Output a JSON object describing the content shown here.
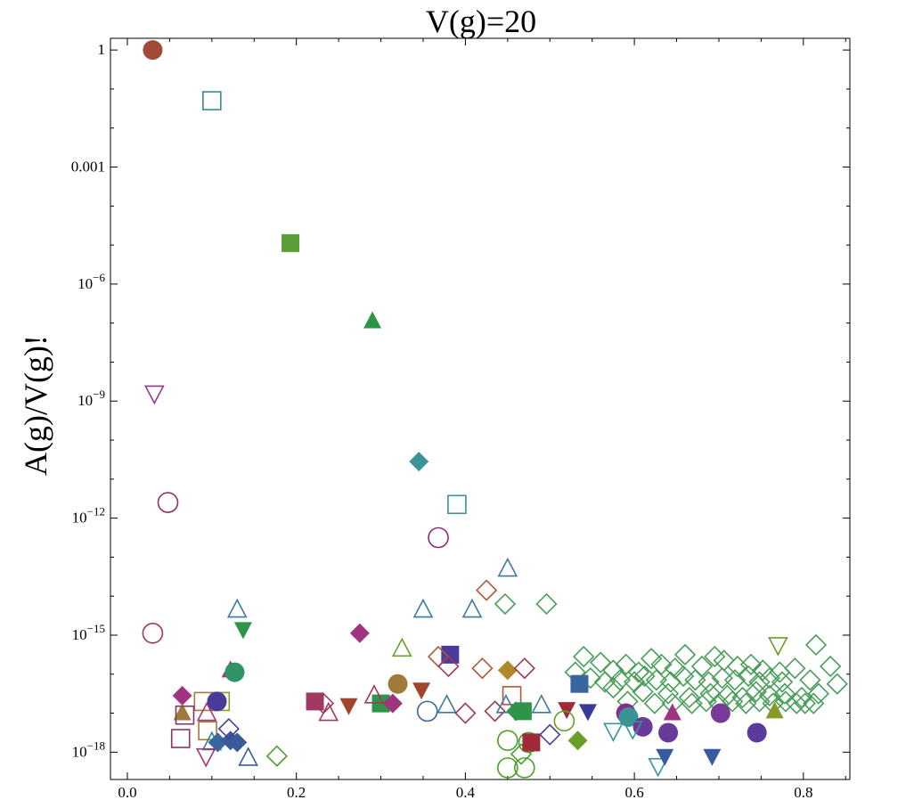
{
  "chart_data": {
    "type": "scatter",
    "title": "V(g)=20",
    "xlabel": "",
    "ylabel": "A(g)/V(g)!",
    "xlim": [
      -0.02,
      0.855
    ],
    "ylim_log10": [
      -18.7,
      0.3
    ],
    "x_ticks": [
      {
        "value": 0.0,
        "label": "0.0"
      },
      {
        "value": 0.2,
        "label": "0.2"
      },
      {
        "value": 0.4,
        "label": "0.4"
      },
      {
        "value": 0.6,
        "label": "0.6"
      },
      {
        "value": 0.8,
        "label": "0.8"
      }
    ],
    "y_ticks": [
      {
        "log10": 0,
        "base": "1",
        "exp": ""
      },
      {
        "log10": -3,
        "base": "0.001",
        "exp": ""
      },
      {
        "log10": -6,
        "base": "10",
        "exp": "−6"
      },
      {
        "log10": -9,
        "base": "10",
        "exp": "−9"
      },
      {
        "log10": -12,
        "base": "10",
        "exp": "−12"
      },
      {
        "log10": -15,
        "base": "10",
        "exp": "−15"
      },
      {
        "log10": -18,
        "base": "10",
        "exp": "−18"
      }
    ],
    "points": [
      {
        "x": 0.03,
        "log10y": 0.0,
        "shape": "circle",
        "filled": true,
        "color": "#a24a3a"
      },
      {
        "x": 0.1,
        "log10y": -1.3,
        "shape": "square",
        "filled": false,
        "color": "#3a8a96"
      },
      {
        "x": 0.193,
        "log10y": -4.95,
        "shape": "square",
        "filled": true,
        "color": "#5c9e38"
      },
      {
        "x": 0.29,
        "log10y": -6.95,
        "shape": "triangle-up",
        "filled": true,
        "color": "#2e9448"
      },
      {
        "x": 0.032,
        "log10y": -8.8,
        "shape": "triangle-down",
        "filled": false,
        "color": "#8e3a8c"
      },
      {
        "x": 0.345,
        "log10y": -10.55,
        "shape": "diamond",
        "filled": true,
        "color": "#3a9496"
      },
      {
        "x": 0.048,
        "log10y": -11.6,
        "shape": "circle",
        "filled": false,
        "color": "#8a3468"
      },
      {
        "x": 0.39,
        "log10y": -11.65,
        "shape": "square",
        "filled": false,
        "color": "#3a9496"
      },
      {
        "x": 0.368,
        "log10y": -12.5,
        "shape": "circle",
        "filled": false,
        "color": "#8e2a7a"
      },
      {
        "x": 0.45,
        "log10y": -13.3,
        "shape": "triangle-up",
        "filled": false,
        "color": "#3a7aa0"
      },
      {
        "x": 0.425,
        "log10y": -13.85,
        "shape": "diamond",
        "filled": false,
        "color": "#b0583a"
      },
      {
        "x": 0.447,
        "log10y": -14.2,
        "shape": "diamond",
        "filled": false,
        "color": "#4a9e5a"
      },
      {
        "x": 0.496,
        "log10y": -14.2,
        "shape": "diamond",
        "filled": false,
        "color": "#4a9e5a"
      },
      {
        "x": 0.13,
        "log10y": -14.35,
        "shape": "triangle-up",
        "filled": false,
        "color": "#3a7aa0"
      },
      {
        "x": 0.35,
        "log10y": -14.35,
        "shape": "triangle-up",
        "filled": false,
        "color": "#3a7aa0"
      },
      {
        "x": 0.408,
        "log10y": -14.35,
        "shape": "triangle-up",
        "filled": false,
        "color": "#3a7aa0"
      },
      {
        "x": 0.137,
        "log10y": -14.85,
        "shape": "triangle-down",
        "filled": true,
        "color": "#2e9448"
      },
      {
        "x": 0.03,
        "log10y": -14.95,
        "shape": "circle",
        "filled": false,
        "color": "#a03a54"
      },
      {
        "x": 0.275,
        "log10y": -14.95,
        "shape": "diamond",
        "filled": true,
        "color": "#a0347e"
      },
      {
        "x": 0.325,
        "log10y": -15.35,
        "shape": "triangle-up",
        "filled": false,
        "color": "#6a9e2a"
      },
      {
        "x": 0.382,
        "log10y": -15.5,
        "shape": "square",
        "filled": true,
        "color": "#4a3a9a"
      },
      {
        "x": 0.368,
        "log10y": -15.55,
        "shape": "diamond",
        "filled": false,
        "color": "#b0583a"
      },
      {
        "x": 0.38,
        "log10y": -15.8,
        "shape": "diamond",
        "filled": false,
        "color": "#a03a54"
      },
      {
        "x": 0.42,
        "log10y": -15.85,
        "shape": "diamond",
        "filled": false,
        "color": "#b0583a"
      },
      {
        "x": 0.45,
        "log10y": -15.9,
        "shape": "diamond",
        "filled": true,
        "color": "#b08a2a"
      },
      {
        "x": 0.47,
        "log10y": -15.85,
        "shape": "diamond",
        "filled": false,
        "color": "#a03a54"
      },
      {
        "x": 0.122,
        "log10y": -15.9,
        "shape": "triangle-up",
        "filled": true,
        "color": "#a0347e"
      },
      {
        "x": 0.127,
        "log10y": -15.95,
        "shape": "circle",
        "filled": true,
        "color": "#2e9468"
      },
      {
        "x": 0.77,
        "log10y": -15.25,
        "shape": "triangle-down",
        "filled": false,
        "color": "#6a9e2a"
      },
      {
        "x": 0.815,
        "log10y": -15.25,
        "shape": "diamond",
        "filled": false,
        "color": "#4a9e5a"
      },
      {
        "x": 0.32,
        "log10y": -16.25,
        "shape": "circle",
        "filled": true,
        "color": "#a07a3a"
      },
      {
        "x": 0.348,
        "log10y": -16.4,
        "shape": "triangle-down",
        "filled": true,
        "color": "#a0462a"
      },
      {
        "x": 0.535,
        "log10y": -16.25,
        "shape": "square",
        "filled": true,
        "color": "#3a66a0"
      },
      {
        "x": 0.455,
        "log10y": -16.55,
        "shape": "square",
        "filled": false,
        "color": "#b0583a"
      },
      {
        "x": 0.065,
        "log10y": -16.55,
        "shape": "diamond",
        "filled": true,
        "color": "#a0347e"
      },
      {
        "x": 0.09,
        "log10y": -16.7,
        "shape": "square",
        "filled": false,
        "color": "#a07a3a"
      },
      {
        "x": 0.11,
        "log10y": -16.7,
        "shape": "square",
        "filled": false,
        "color": "#8a9a2a"
      },
      {
        "x": 0.106,
        "log10y": -16.7,
        "shape": "circle",
        "filled": true,
        "color": "#4a3a9a"
      },
      {
        "x": 0.222,
        "log10y": -16.7,
        "shape": "square",
        "filled": true,
        "color": "#a03a64"
      },
      {
        "x": 0.232,
        "log10y": -16.75,
        "shape": "diamond",
        "filled": false,
        "color": "#a03a54"
      },
      {
        "x": 0.262,
        "log10y": -16.8,
        "shape": "triangle-down",
        "filled": true,
        "color": "#a0462a"
      },
      {
        "x": 0.3,
        "log10y": -16.75,
        "shape": "square",
        "filled": true,
        "color": "#2e9448"
      },
      {
        "x": 0.314,
        "log10y": -16.75,
        "shape": "diamond",
        "filled": true,
        "color": "#a0347e"
      },
      {
        "x": 0.292,
        "log10y": -16.55,
        "shape": "triangle-up",
        "filled": false,
        "color": "#a03a54"
      },
      {
        "x": 0.238,
        "log10y": -17.0,
        "shape": "triangle-up",
        "filled": false,
        "color": "#a03a54"
      },
      {
        "x": 0.355,
        "log10y": -16.95,
        "shape": "circle",
        "filled": false,
        "color": "#3a66a0"
      },
      {
        "x": 0.378,
        "log10y": -16.8,
        "shape": "triangle-up",
        "filled": false,
        "color": "#3a7aa0"
      },
      {
        "x": 0.4,
        "log10y": -17.0,
        "shape": "diamond",
        "filled": false,
        "color": "#a03a54"
      },
      {
        "x": 0.065,
        "log10y": -17.0,
        "shape": "triangle-up",
        "filled": true,
        "color": "#a07a3a"
      },
      {
        "x": 0.068,
        "log10y": -17.05,
        "shape": "square",
        "filled": false,
        "color": "#8a3468"
      },
      {
        "x": 0.094,
        "log10y": -17.0,
        "shape": "triangle-up",
        "filled": false,
        "color": "#a0347e"
      },
      {
        "x": 0.435,
        "log10y": -16.95,
        "shape": "diamond",
        "filled": false,
        "color": "#a03a54"
      },
      {
        "x": 0.448,
        "log10y": -16.8,
        "shape": "triangle-up",
        "filled": false,
        "color": "#3a7aa0"
      },
      {
        "x": 0.46,
        "log10y": -16.95,
        "shape": "diamond",
        "filled": true,
        "color": "#2e9448"
      },
      {
        "x": 0.468,
        "log10y": -16.95,
        "shape": "square",
        "filled": true,
        "color": "#2e9448"
      },
      {
        "x": 0.49,
        "log10y": -16.8,
        "shape": "triangle-up",
        "filled": false,
        "color": "#3a7aa0"
      },
      {
        "x": 0.52,
        "log10y": -16.9,
        "shape": "triangle-down",
        "filled": true,
        "color": "#a02a3a"
      },
      {
        "x": 0.545,
        "log10y": -16.95,
        "shape": "triangle-down",
        "filled": true,
        "color": "#3a3a9a"
      },
      {
        "x": 0.517,
        "log10y": -17.2,
        "shape": "circle",
        "filled": false,
        "color": "#6a9e2a"
      },
      {
        "x": 0.59,
        "log10y": -17.0,
        "shape": "circle",
        "filled": true,
        "color": "#8a2a8a"
      },
      {
        "x": 0.593,
        "log10y": -17.1,
        "shape": "circle",
        "filled": true,
        "color": "#3a9496"
      },
      {
        "x": 0.61,
        "log10y": -17.35,
        "shape": "circle",
        "filled": true,
        "color": "#6a3a9a"
      },
      {
        "x": 0.64,
        "log10y": -17.5,
        "shape": "circle",
        "filled": true,
        "color": "#6a3a9a"
      },
      {
        "x": 0.645,
        "log10y": -17.0,
        "shape": "triangle-up",
        "filled": true,
        "color": "#a0347e"
      },
      {
        "x": 0.702,
        "log10y": -17.0,
        "shape": "circle",
        "filled": true,
        "color": "#7a3a9a"
      },
      {
        "x": 0.745,
        "log10y": -17.5,
        "shape": "circle",
        "filled": true,
        "color": "#5a3a9a"
      },
      {
        "x": 0.766,
        "log10y": -16.95,
        "shape": "triangle-up",
        "filled": true,
        "color": "#8a9a2a"
      },
      {
        "x": 0.095,
        "log10y": -17.45,
        "shape": "square",
        "filled": false,
        "color": "#a07a3a"
      },
      {
        "x": 0.063,
        "log10y": -17.65,
        "shape": "square",
        "filled": false,
        "color": "#8a3468"
      },
      {
        "x": 0.1,
        "log10y": -17.75,
        "shape": "triangle-up",
        "filled": false,
        "color": "#3a7aa0"
      },
      {
        "x": 0.107,
        "log10y": -17.75,
        "shape": "diamond",
        "filled": true,
        "color": "#3a66a0"
      },
      {
        "x": 0.122,
        "log10y": -17.7,
        "shape": "diamond",
        "filled": true,
        "color": "#3a5a9a"
      },
      {
        "x": 0.13,
        "log10y": -17.75,
        "shape": "diamond",
        "filled": true,
        "color": "#3a5a9a"
      },
      {
        "x": 0.12,
        "log10y": -17.4,
        "shape": "diamond",
        "filled": false,
        "color": "#4a3a9a"
      },
      {
        "x": 0.093,
        "log10y": -18.1,
        "shape": "triangle-down",
        "filled": false,
        "color": "#a0347e"
      },
      {
        "x": 0.143,
        "log10y": -18.15,
        "shape": "triangle-up",
        "filled": false,
        "color": "#3a5a9a"
      },
      {
        "x": 0.177,
        "log10y": -18.1,
        "shape": "diamond",
        "filled": false,
        "color": "#4a9e2a"
      },
      {
        "x": 0.45,
        "log10y": -17.7,
        "shape": "circle",
        "filled": false,
        "color": "#4a9e2a"
      },
      {
        "x": 0.45,
        "log10y": -18.4,
        "shape": "circle",
        "filled": false,
        "color": "#4a9e2a"
      },
      {
        "x": 0.47,
        "log10y": -18.4,
        "shape": "circle",
        "filled": false,
        "color": "#4a9e2a"
      },
      {
        "x": 0.475,
        "log10y": -17.75,
        "shape": "circle",
        "filled": false,
        "color": "#4a9e2a"
      },
      {
        "x": 0.466,
        "log10y": -18.05,
        "shape": "diamond",
        "filled": false,
        "color": "#4a9e2a"
      },
      {
        "x": 0.478,
        "log10y": -17.75,
        "shape": "square",
        "filled": true,
        "color": "#a02a3a"
      },
      {
        "x": 0.5,
        "log10y": -17.55,
        "shape": "diamond",
        "filled": false,
        "color": "#4a3a9a"
      },
      {
        "x": 0.533,
        "log10y": -17.7,
        "shape": "diamond",
        "filled": true,
        "color": "#6a9e2a"
      },
      {
        "x": 0.575,
        "log10y": -17.45,
        "shape": "triangle-down",
        "filled": false,
        "color": "#3a9496"
      },
      {
        "x": 0.598,
        "log10y": -17.4,
        "shape": "triangle-down",
        "filled": false,
        "color": "#3a9496"
      },
      {
        "x": 0.628,
        "log10y": -18.35,
        "shape": "triangle-down",
        "filled": false,
        "color": "#3a9496"
      },
      {
        "x": 0.636,
        "log10y": -18.1,
        "shape": "triangle-down",
        "filled": true,
        "color": "#3a5aa0"
      },
      {
        "x": 0.692,
        "log10y": -18.1,
        "shape": "triangle-down",
        "filled": true,
        "color": "#3a5aa0"
      }
    ],
    "diamond_cloud": {
      "color": "#4a9e5a",
      "points": [
        [
          0.54,
          -15.55
        ],
        [
          0.56,
          -15.7
        ],
        [
          0.575,
          -15.9
        ],
        [
          0.59,
          -15.75
        ],
        [
          0.605,
          -15.95
        ],
        [
          0.62,
          -15.6
        ],
        [
          0.632,
          -15.75
        ],
        [
          0.648,
          -15.85
        ],
        [
          0.66,
          -15.5
        ],
        [
          0.68,
          -15.8
        ],
        [
          0.695,
          -15.55
        ],
        [
          0.706,
          -15.65
        ],
        [
          0.722,
          -15.8
        ],
        [
          0.738,
          -15.75
        ],
        [
          0.752,
          -15.9
        ],
        [
          0.772,
          -15.95
        ],
        [
          0.79,
          -15.85
        ],
        [
          0.832,
          -15.8
        ],
        [
          0.53,
          -15.95
        ],
        [
          0.548,
          -16.1
        ],
        [
          0.565,
          -16.2
        ],
        [
          0.583,
          -16.15
        ],
        [
          0.6,
          -16.2
        ],
        [
          0.612,
          -16.05
        ],
        [
          0.626,
          -16.15
        ],
        [
          0.643,
          -16.2
        ],
        [
          0.658,
          -16.05
        ],
        [
          0.672,
          -16.15
        ],
        [
          0.688,
          -16.2
        ],
        [
          0.704,
          -16.1
        ],
        [
          0.719,
          -16.15
        ],
        [
          0.735,
          -16.05
        ],
        [
          0.748,
          -16.2
        ],
        [
          0.76,
          -16.1
        ],
        [
          0.775,
          -16.2
        ],
        [
          0.808,
          -16.15
        ],
        [
          0.84,
          -16.25
        ],
        [
          0.575,
          -16.35
        ],
        [
          0.61,
          -16.45
        ],
        [
          0.64,
          -16.5
        ],
        [
          0.665,
          -16.6
        ],
        [
          0.69,
          -16.5
        ],
        [
          0.71,
          -16.55
        ],
        [
          0.728,
          -16.6
        ],
        [
          0.744,
          -16.45
        ],
        [
          0.76,
          -16.55
        ],
        [
          0.778,
          -16.5
        ],
        [
          0.798,
          -16.6
        ],
        [
          0.818,
          -16.5
        ],
        [
          0.592,
          -16.7
        ],
        [
          0.624,
          -16.75
        ],
        [
          0.645,
          -16.75
        ],
        [
          0.668,
          -16.75
        ],
        [
          0.685,
          -16.7
        ],
        [
          0.7,
          -16.75
        ],
        [
          0.716,
          -16.7
        ],
        [
          0.732,
          -16.75
        ],
        [
          0.748,
          -16.7
        ],
        [
          0.764,
          -16.75
        ],
        [
          0.779,
          -16.7
        ],
        [
          0.792,
          -16.75
        ],
        [
          0.802,
          -16.75
        ],
        [
          0.812,
          -16.75
        ]
      ]
    }
  }
}
